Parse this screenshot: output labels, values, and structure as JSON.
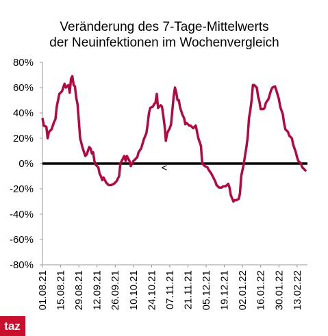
{
  "chart_data": {
    "type": "line",
    "title": [
      "Veränderung des 7-Tage-Mittelwerts",
      "der Neuinfektionen im Wochenvergleich"
    ],
    "annotation": "<",
    "logo": "taz",
    "hline": 0,
    "x": [
      0,
      1,
      3,
      4,
      5,
      7,
      9,
      10,
      11,
      13,
      15,
      17,
      18,
      20,
      21,
      22,
      23,
      24,
      25,
      26,
      27,
      28,
      29,
      31,
      33,
      34,
      36,
      37,
      38,
      39,
      40,
      41,
      43,
      44,
      45,
      46,
      47,
      49,
      51,
      53,
      55,
      57,
      59,
      60,
      62,
      63,
      64,
      65,
      67,
      68,
      70,
      71,
      73,
      74,
      76,
      78,
      80,
      81,
      82,
      83,
      85,
      86,
      87,
      88,
      89,
      91,
      92,
      93,
      94,
      95,
      96,
      98,
      99,
      101,
      102,
      103,
      104,
      105,
      106,
      108,
      109,
      110,
      111,
      113,
      114,
      116,
      118,
      119,
      120,
      122,
      123,
      125,
      127,
      128,
      130,
      131,
      133,
      134,
      136,
      138,
      139,
      141,
      142,
      143,
      144,
      145,
      147,
      148,
      149,
      151,
      152,
      153,
      155,
      157,
      158,
      159,
      160,
      161,
      162,
      163,
      165,
      166,
      167,
      168,
      170,
      171,
      172,
      174,
      176,
      177,
      179,
      180,
      182,
      183,
      185,
      186,
      187,
      189,
      190,
      192,
      193,
      195,
      196,
      197,
      199,
      200,
      202,
      203
    ],
    "series": [
      {
        "color": "#b20a3f",
        "values": [
          36,
          30,
          29,
          20,
          25,
          27,
          33,
          35,
          45,
          55,
          57,
          63,
          60,
          62,
          56,
          67,
          69,
          62,
          61,
          52,
          47,
          34,
          20,
          12,
          6,
          7,
          13,
          12,
          8,
          9,
          2,
          -1,
          -3,
          -8,
          -10,
          -13,
          -11,
          -15,
          -17,
          -17,
          -16,
          -14,
          -10,
          0,
          4,
          6,
          2,
          6,
          2,
          -2,
          2,
          3,
          5,
          9,
          12,
          19,
          24,
          31,
          40,
          44,
          45,
          47,
          48,
          55,
          44,
          46,
          45,
          38,
          30,
          18,
          24,
          28,
          31,
          53,
          60,
          56,
          50,
          50,
          44,
          38,
          36,
          31,
          32,
          30,
          30,
          28,
          30,
          25,
          20,
          14,
          0,
          -2,
          -3,
          -5,
          -8,
          -10,
          -14,
          -17,
          -19,
          -19,
          -18,
          -18,
          -17,
          -16,
          -19,
          -25,
          -30,
          -29,
          -29,
          -28,
          -24,
          -10,
          0,
          13,
          21,
          36,
          42,
          50,
          62,
          62,
          60,
          53,
          49,
          43,
          43,
          44,
          48,
          51,
          58,
          60,
          61,
          58,
          51,
          45,
          39,
          32,
          27,
          25,
          22,
          20,
          15,
          9,
          5,
          2,
          0,
          -3,
          -5,
          -6
        ]
      }
    ],
    "xlim": [
      0,
      204
    ],
    "xticks": [
      {
        "value": 0,
        "label": "01.08.21"
      },
      {
        "value": 14,
        "label": "15.08.21"
      },
      {
        "value": 28,
        "label": "29.08.21"
      },
      {
        "value": 42,
        "label": "12.09.21"
      },
      {
        "value": 56,
        "label": "26.09.21"
      },
      {
        "value": 70,
        "label": "10.10.21"
      },
      {
        "value": 84,
        "label": "24.10.21"
      },
      {
        "value": 98,
        "label": "07.11.21"
      },
      {
        "value": 112,
        "label": "21.11.21"
      },
      {
        "value": 126,
        "label": "05.12.21"
      },
      {
        "value": 140,
        "label": "19.12.21"
      },
      {
        "value": 154,
        "label": "02.01.22"
      },
      {
        "value": 168,
        "label": "16.01.22"
      },
      {
        "value": 182,
        "label": "30.01.22"
      },
      {
        "value": 196,
        "label": "13.02.22"
      }
    ],
    "ylim": [
      -80,
      80
    ],
    "yticks": [
      {
        "value": -80,
        "label": "-80%"
      },
      {
        "value": -60,
        "label": "-60%"
      },
      {
        "value": -40,
        "label": "-40%"
      },
      {
        "value": -20,
        "label": "-20%"
      },
      {
        "value": 0,
        "label": "0%"
      },
      {
        "value": 20,
        "label": "20%"
      },
      {
        "value": 40,
        "label": "40%"
      },
      {
        "value": 60,
        "label": "60%"
      },
      {
        "value": 80,
        "label": "80%"
      }
    ]
  }
}
